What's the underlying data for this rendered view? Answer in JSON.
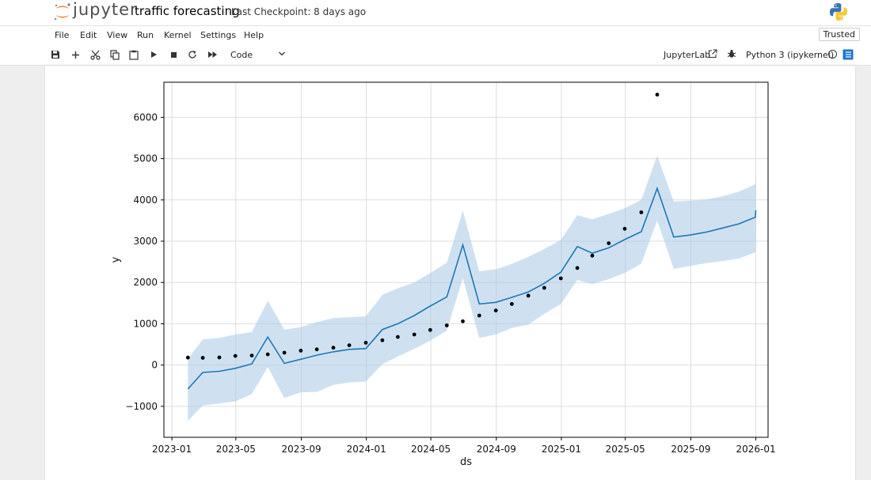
{
  "header": {
    "logo_text": "jupyter",
    "notebook_title": "traffic forecasting",
    "checkpoint": "Last Checkpoint: 8 days ago"
  },
  "menu": {
    "items": [
      "File",
      "Edit",
      "View",
      "Run",
      "Kernel",
      "Settings",
      "Help"
    ],
    "trusted": "Trusted"
  },
  "toolbar": {
    "icons": [
      "save-icon",
      "add-cell-icon",
      "cut-icon",
      "copy-icon",
      "paste-icon",
      "run-icon",
      "stop-icon",
      "restart-icon",
      "fast-forward-icon"
    ],
    "cell_type": "Code",
    "jupyterlab_label": "JupyterLab",
    "kernel_name": "Python 3 (ipykernel)"
  },
  "chart_data": {
    "type": "line",
    "xlabel": "ds",
    "ylabel": "y",
    "ylim": [
      -1750,
      6850
    ],
    "x_range": [
      "2022-12-17",
      "2026-01-24"
    ],
    "grid": true,
    "xticks": [
      "2023-01",
      "2023-05",
      "2023-09",
      "2024-01",
      "2024-05",
      "2024-09",
      "2025-01",
      "2025-05",
      "2025-09",
      "2026-01"
    ],
    "yticks": [
      -1000,
      0,
      1000,
      2000,
      3000,
      4000,
      5000,
      6000
    ],
    "colors": {
      "forecast": "#1f77b4",
      "band": "#a8c8e6",
      "actual": "#000000"
    },
    "actual": [
      {
        "x": "2023-01-31",
        "y": 180
      },
      {
        "x": "2023-02-28",
        "y": 175
      },
      {
        "x": "2023-03-31",
        "y": 185
      },
      {
        "x": "2023-04-30",
        "y": 220
      },
      {
        "x": "2023-05-31",
        "y": 230
      },
      {
        "x": "2023-06-30",
        "y": 260
      },
      {
        "x": "2023-07-31",
        "y": 300
      },
      {
        "x": "2023-08-31",
        "y": 350
      },
      {
        "x": "2023-09-30",
        "y": 380
      },
      {
        "x": "2023-10-31",
        "y": 420
      },
      {
        "x": "2023-11-30",
        "y": 480
      },
      {
        "x": "2023-12-31",
        "y": 540
      },
      {
        "x": "2024-01-31",
        "y": 600
      },
      {
        "x": "2024-02-29",
        "y": 680
      },
      {
        "x": "2024-03-31",
        "y": 740
      },
      {
        "x": "2024-04-30",
        "y": 850
      },
      {
        "x": "2024-05-31",
        "y": 960
      },
      {
        "x": "2024-06-30",
        "y": 1060
      },
      {
        "x": "2024-07-31",
        "y": 1200
      },
      {
        "x": "2024-08-31",
        "y": 1320
      },
      {
        "x": "2024-09-30",
        "y": 1480
      },
      {
        "x": "2024-10-31",
        "y": 1680
      },
      {
        "x": "2024-11-30",
        "y": 1870
      },
      {
        "x": "2024-12-31",
        "y": 2100
      },
      {
        "x": "2025-01-31",
        "y": 2350
      },
      {
        "x": "2025-02-28",
        "y": 2650
      },
      {
        "x": "2025-03-31",
        "y": 2950
      },
      {
        "x": "2025-04-30",
        "y": 3300
      },
      {
        "x": "2025-05-31",
        "y": 3700
      },
      {
        "x": "2025-06-30",
        "y": 6550
      }
    ],
    "forecast": [
      {
        "x": "2023-01-31",
        "yhat": -580,
        "lower": -1350,
        "upper": 150
      },
      {
        "x": "2023-02-28",
        "yhat": -180,
        "lower": -980,
        "upper": 620
      },
      {
        "x": "2023-03-31",
        "yhat": -150,
        "lower": -930,
        "upper": 660
      },
      {
        "x": "2023-04-30",
        "yhat": -80,
        "lower": -880,
        "upper": 740
      },
      {
        "x": "2023-05-31",
        "yhat": 30,
        "lower": -700,
        "upper": 800
      },
      {
        "x": "2023-06-30",
        "yhat": 680,
        "lower": -50,
        "upper": 1560
      },
      {
        "x": "2023-07-31",
        "yhat": 40,
        "lower": -800,
        "upper": 860
      },
      {
        "x": "2023-08-31",
        "yhat": 140,
        "lower": -660,
        "upper": 920
      },
      {
        "x": "2023-09-30",
        "yhat": 240,
        "lower": -650,
        "upper": 1040
      },
      {
        "x": "2023-10-31",
        "yhat": 320,
        "lower": -480,
        "upper": 1140
      },
      {
        "x": "2023-11-30",
        "yhat": 380,
        "lower": -420,
        "upper": 1160
      },
      {
        "x": "2023-12-31",
        "yhat": 400,
        "lower": -400,
        "upper": 1180
      },
      {
        "x": "2024-01-31",
        "yhat": 860,
        "lower": 20,
        "upper": 1700
      },
      {
        "x": "2024-02-29",
        "yhat": 1000,
        "lower": 210,
        "upper": 1860
      },
      {
        "x": "2024-03-31",
        "yhat": 1200,
        "lower": 390,
        "upper": 2000
      },
      {
        "x": "2024-04-30",
        "yhat": 1430,
        "lower": 590,
        "upper": 2230
      },
      {
        "x": "2024-05-31",
        "yhat": 1650,
        "lower": 830,
        "upper": 2480
      },
      {
        "x": "2024-06-30",
        "yhat": 2910,
        "lower": 2110,
        "upper": 3740
      },
      {
        "x": "2024-07-31",
        "yhat": 1480,
        "lower": 660,
        "upper": 2270
      },
      {
        "x": "2024-08-31",
        "yhat": 1520,
        "lower": 740,
        "upper": 2320
      },
      {
        "x": "2024-09-30",
        "yhat": 1640,
        "lower": 900,
        "upper": 2450
      },
      {
        "x": "2024-10-31",
        "yhat": 1770,
        "lower": 980,
        "upper": 2620
      },
      {
        "x": "2024-11-30",
        "yhat": 1980,
        "lower": 1240,
        "upper": 2810
      },
      {
        "x": "2024-12-31",
        "yhat": 2250,
        "lower": 1480,
        "upper": 3030
      },
      {
        "x": "2025-01-31",
        "yhat": 2870,
        "lower": 2060,
        "upper": 3630
      },
      {
        "x": "2025-02-28",
        "yhat": 2710,
        "lower": 1960,
        "upper": 3530
      },
      {
        "x": "2025-03-31",
        "yhat": 2840,
        "lower": 2080,
        "upper": 3660
      },
      {
        "x": "2025-04-30",
        "yhat": 3040,
        "lower": 2230,
        "upper": 3800
      },
      {
        "x": "2025-05-31",
        "yhat": 3230,
        "lower": 2460,
        "upper": 4000
      },
      {
        "x": "2025-06-30",
        "yhat": 4280,
        "lower": 3500,
        "upper": 5070
      },
      {
        "x": "2025-07-31",
        "yhat": 3100,
        "lower": 2330,
        "upper": 3960
      },
      {
        "x": "2025-08-31",
        "yhat": 3150,
        "lower": 2400,
        "upper": 3980
      },
      {
        "x": "2025-09-30",
        "yhat": 3220,
        "lower": 2470,
        "upper": 4010
      },
      {
        "x": "2025-10-31",
        "yhat": 3320,
        "lower": 2520,
        "upper": 4090
      },
      {
        "x": "2025-11-30",
        "yhat": 3420,
        "lower": 2580,
        "upper": 4200
      },
      {
        "x": "2025-12-31",
        "yhat": 3580,
        "lower": 2730,
        "upper": 4380
      },
      {
        "x": "2026-01-01",
        "yhat": 3750,
        "lower": 2900,
        "upper": 4590
      }
    ]
  }
}
